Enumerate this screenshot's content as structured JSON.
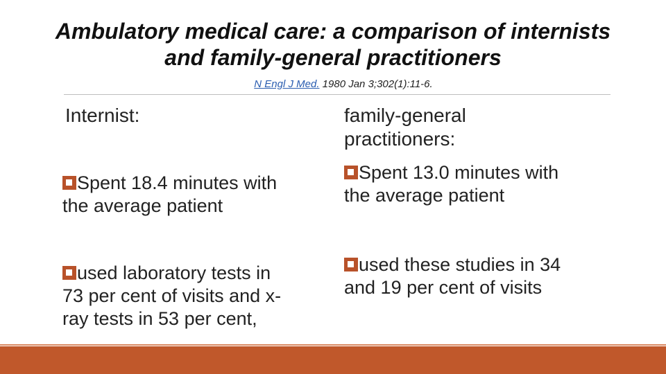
{
  "slide": {
    "title_line1": "Ambulatory medical care: a comparison of internists",
    "title_line2": "and family-general practitioners",
    "citation": {
      "journal": "N Engl J Med.",
      "details": " 1980 Jan 3;302(1):11-6."
    },
    "accent_color": "#c0582b",
    "left_column": {
      "heading": "Internist:",
      "bullets": [
        {
          "line1": "Spent 18.4 minutes with",
          "line2": "the average patient"
        },
        {
          "line1": "used laboratory tests in",
          "line2": "73 per cent of visits and x-",
          "line3": "ray tests in 53 per cent,"
        }
      ]
    },
    "right_column": {
      "heading_line1": "family-general",
      "heading_line2": "practitioners:",
      "bullets": [
        {
          "line1": "Spent 13.0 minutes with",
          "line2": "the average patient"
        },
        {
          "line1": "used these studies in 34",
          "line2": "and 19 per cent of visits"
        }
      ]
    },
    "bullet_icon": "checkbox-square-icon"
  }
}
